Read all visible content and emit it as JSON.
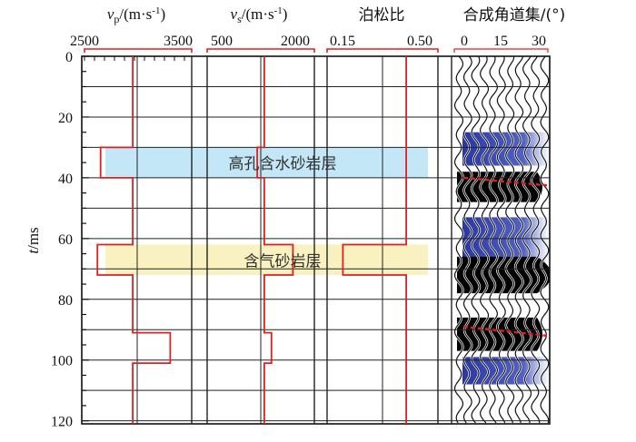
{
  "chart_data": {
    "type": "line",
    "y_axis": {
      "label_italic": "t",
      "label_rest": "/ms",
      "ticks": [
        "0",
        "20",
        "40",
        "60",
        "80",
        "100",
        "120"
      ],
      "range": [
        0,
        121
      ]
    },
    "panels": [
      {
        "key": "vp",
        "title_sym": "v",
        "title_sub": "p",
        "title_unit": "/(m·s",
        "title_sup": "-1",
        "title_close": ")",
        "tick_left": "2500",
        "tick_right": "3500",
        "xlim": [
          2500,
          3500
        ],
        "profile": [
          {
            "t": 0,
            "v": 2950
          },
          {
            "t": 30,
            "v": 2950
          },
          {
            "t": 30,
            "v": 2650
          },
          {
            "t": 40,
            "v": 2650
          },
          {
            "t": 40,
            "v": 2950
          },
          {
            "t": 62,
            "v": 2950
          },
          {
            "t": 62,
            "v": 2620
          },
          {
            "t": 72,
            "v": 2620
          },
          {
            "t": 72,
            "v": 2950
          },
          {
            "t": 91,
            "v": 2950
          },
          {
            "t": 91,
            "v": 3300
          },
          {
            "t": 101,
            "v": 3300
          },
          {
            "t": 101,
            "v": 2950
          },
          {
            "t": 121,
            "v": 2950
          }
        ]
      },
      {
        "key": "vs",
        "title_sym": "v",
        "title_sub": "s",
        "title_unit": "/(m·s",
        "title_sup": "-1",
        "title_close": ")",
        "tick_left": "500",
        "tick_right": "2000",
        "xlim": [
          500,
          2000
        ],
        "profile": [
          {
            "t": 0,
            "v": 1300
          },
          {
            "t": 30,
            "v": 1300
          },
          {
            "t": 30,
            "v": 1200
          },
          {
            "t": 40,
            "v": 1200
          },
          {
            "t": 40,
            "v": 1300
          },
          {
            "t": 62,
            "v": 1300
          },
          {
            "t": 62,
            "v": 1700
          },
          {
            "t": 72,
            "v": 1700
          },
          {
            "t": 72,
            "v": 1300
          },
          {
            "t": 91,
            "v": 1300
          },
          {
            "t": 91,
            "v": 1400
          },
          {
            "t": 101,
            "v": 1400
          },
          {
            "t": 101,
            "v": 1300
          },
          {
            "t": 121,
            "v": 1300
          }
        ]
      },
      {
        "key": "pr",
        "title": "泊松比",
        "tick_left": "0.15",
        "tick_right": "0.50",
        "xlim": [
          0.15,
          0.5
        ],
        "profile": [
          {
            "t": 0,
            "v": 0.4
          },
          {
            "t": 62,
            "v": 0.4
          },
          {
            "t": 62,
            "v": 0.2
          },
          {
            "t": 72,
            "v": 0.2
          },
          {
            "t": 72,
            "v": 0.4
          },
          {
            "t": 121,
            "v": 0.4
          }
        ]
      }
    ],
    "gather": {
      "title": "合成角道集/(°)",
      "ticks": [
        "0",
        "15",
        "30"
      ],
      "angles": [
        0,
        3,
        6,
        9,
        12,
        15,
        18,
        21,
        24,
        27,
        30
      ],
      "blue_zones": [
        [
          25,
          36
        ],
        [
          53,
          68
        ],
        [
          99,
          108
        ]
      ],
      "black_zones": [
        [
          38,
          48
        ],
        [
          66,
          78
        ],
        [
          86,
          97
        ]
      ],
      "picked_horizons": [
        {
          "t0": 40,
          "t1": 42.5
        },
        {
          "t0": 89,
          "t1": 92
        }
      ]
    },
    "layers": [
      {
        "label": "高孔含水砂岩层",
        "t_top": 30,
        "t_bottom": 40,
        "color": "#b9e3f5"
      },
      {
        "label": "含气砂岩层",
        "t_top": 62,
        "t_bottom": 72,
        "color": "#f8eeb4"
      }
    ],
    "colors": {
      "curve": "#e02020",
      "grid": "#222222"
    }
  }
}
